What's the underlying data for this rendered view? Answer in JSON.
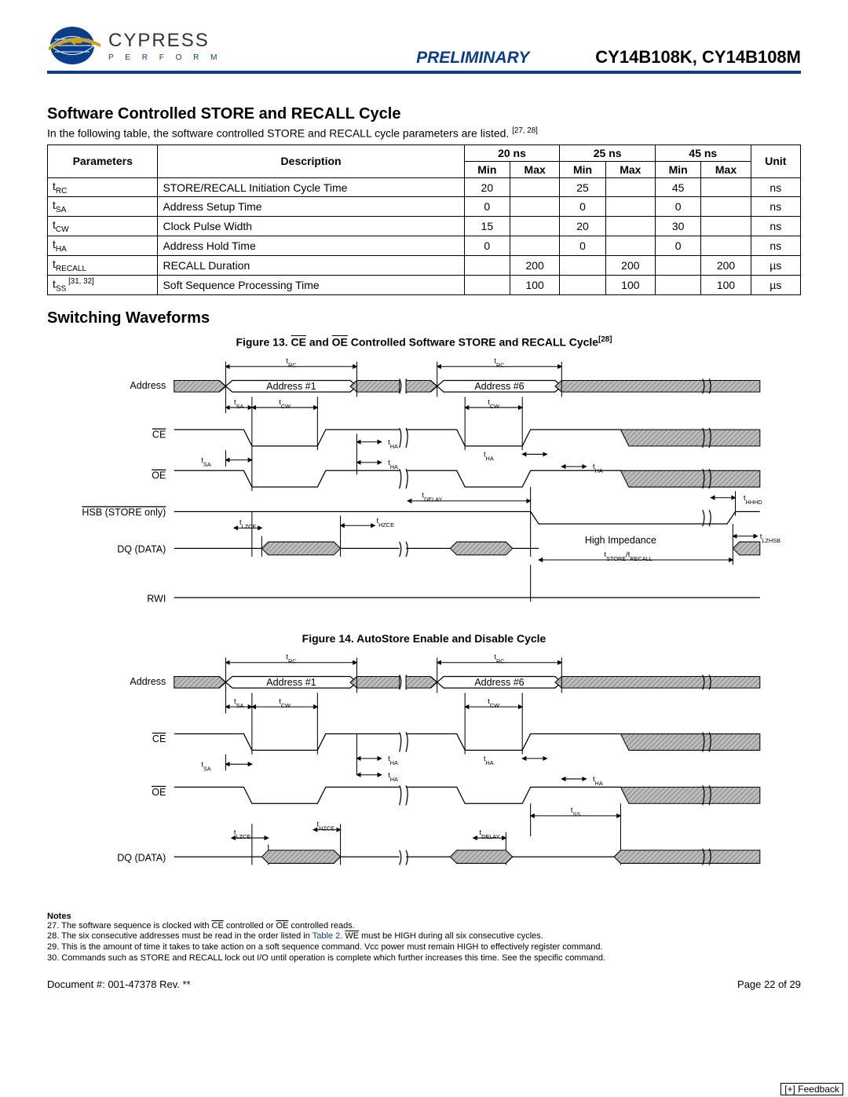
{
  "header": {
    "logo_name": "CYPRESS",
    "logo_sub": "P E R F O R M",
    "preliminary": "PRELIMINARY",
    "part_numbers": "CY14B108K, CY14B108M",
    "logo_colors": {
      "globe": "#0a3d8a",
      "band": "#c9a227"
    },
    "rule_color": "#0a3d8a"
  },
  "section1": {
    "title": "Software Controlled STORE and RECALL Cycle",
    "intro_before": "In the following table, the software controlled STORE and RECALL cycle parameters are listed. ",
    "intro_refs": "[27, 28]"
  },
  "table": {
    "head": {
      "parameters": "Parameters",
      "description": "Description",
      "bins": [
        "20 ns",
        "25 ns",
        "45 ns"
      ],
      "min": "Min",
      "max": "Max",
      "unit": "Unit"
    },
    "rows": [
      {
        "param_base": "t",
        "param_sub": "RC",
        "param_ref": "",
        "desc": "STORE/RECALL Initiation Cycle Time",
        "v": [
          "20",
          "",
          "25",
          "",
          "45",
          ""
        ],
        "unit": "ns"
      },
      {
        "param_base": "t",
        "param_sub": "SA",
        "param_ref": "",
        "desc": "Address Setup Time",
        "v": [
          "0",
          "",
          "0",
          "",
          "0",
          ""
        ],
        "unit": "ns"
      },
      {
        "param_base": "t",
        "param_sub": "CW",
        "param_ref": "",
        "desc": "Clock Pulse Width",
        "v": [
          "15",
          "",
          "20",
          "",
          "30",
          ""
        ],
        "unit": "ns"
      },
      {
        "param_base": "t",
        "param_sub": "HA",
        "param_ref": "",
        "desc": "Address Hold Time",
        "v": [
          "0",
          "",
          "0",
          "",
          "0",
          ""
        ],
        "unit": "ns"
      },
      {
        "param_base": "t",
        "param_sub": "RECALL",
        "param_ref": "",
        "desc": "RECALL Duration",
        "v": [
          "",
          "200",
          "",
          "200",
          "",
          "200"
        ],
        "unit": "µs"
      },
      {
        "param_base": "t",
        "param_sub": "SS",
        "param_ref": " [31, 32]",
        "desc": "Soft Sequence Processing Time",
        "v": [
          "",
          "100",
          "",
          "100",
          "",
          "100"
        ],
        "unit": "µs"
      }
    ]
  },
  "section2": {
    "title": "Switching Waveforms"
  },
  "fig13": {
    "caption_before": "Figure 13.  ",
    "caption_mid1": "CE",
    "caption_and": " and ",
    "caption_mid2": "OE",
    "caption_after": " Controlled Software STORE and RECALL Cycle",
    "caption_ref": "[28]",
    "signals": [
      "Address",
      "CE",
      "OE",
      "HSB (STORE only)",
      "DQ (DATA)",
      "RWI"
    ],
    "addr_labels": [
      "Address #1",
      "Address #6"
    ],
    "timing_syms": [
      "t_RC",
      "t_SA",
      "t_CW",
      "t_HA",
      "t_DELAY",
      "t_LZCE",
      "t_HZCE",
      "t_HHHD",
      "t_LZHSB",
      "t_STORE/t_RECALL"
    ],
    "text_high_impedance": "High Impedance",
    "colors": {
      "hatch": "#bdbdbd",
      "line": "#000000",
      "bg": "#ffffff"
    },
    "font_size_signal": 12,
    "font_size_timing": 9
  },
  "fig14": {
    "caption": "Figure 14.  AutoStore Enable and Disable Cycle",
    "signals": [
      "Address",
      "CE",
      "OE",
      "DQ (DATA)"
    ],
    "addr_labels": [
      "Address #1",
      "Address #6"
    ],
    "timing_syms": [
      "t_RC",
      "t_SA",
      "t_CW",
      "t_HA",
      "t_LZCE",
      "t_HZCE",
      "t_SS",
      "t_DELAY"
    ],
    "colors": {
      "hatch": "#bdbdbd",
      "line": "#000000",
      "bg": "#ffffff"
    }
  },
  "notes": {
    "hdr": "Notes",
    "n27_a": "27. The software sequence is clocked with ",
    "n27_ce": "CE",
    "n27_b": " controlled or ",
    "n27_oe": "OE",
    "n27_c": " controlled reads.",
    "n28_a": "28. The six consecutive addresses must be read in the order listed in ",
    "n28_link": "Table 2",
    "n28_b": ". ",
    "n28_we": "WE",
    "n28_c": " must be HIGH during all six consecutive cycles.",
    "n29": "29. This is the amount of time it takes to take action on a soft sequence command. Vcc power must remain HIGH to effectively register command.",
    "n30": "30. Commands such as STORE and RECALL lock out I/O until operation is complete which further increases this time. See the specific command."
  },
  "footer": {
    "doc": "Document #: 001-47378 Rev. **",
    "page": "Page 22 of 29",
    "feedback": "[+] Feedback"
  }
}
